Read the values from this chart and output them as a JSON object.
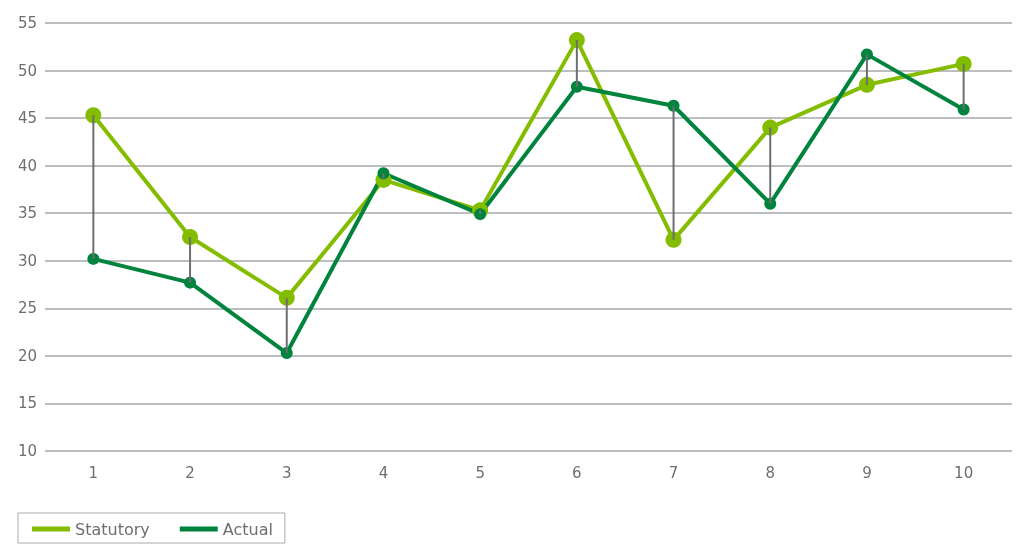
{
  "chart_data": {
    "type": "line",
    "categories": [
      "1",
      "2",
      "3",
      "4",
      "5",
      "6",
      "7",
      "8",
      "9",
      "10"
    ],
    "series": [
      {
        "name": "Statutory",
        "color": "#84bd00",
        "values": [
          45.3,
          32.5,
          26.1,
          38.5,
          35.3,
          53.2,
          32.2,
          44.0,
          48.5,
          50.7
        ]
      },
      {
        "name": "Actual",
        "color": "#00843d",
        "values": [
          30.2,
          27.7,
          20.3,
          39.2,
          34.9,
          48.3,
          46.3,
          36.0,
          51.7,
          45.9
        ],
        "errors": [
          [
            30.2,
            45.3
          ],
          [
            27.7,
            32.5
          ],
          [
            20.3,
            26.1
          ],
          [
            38.5,
            39.2
          ],
          [
            34.9,
            35.3
          ],
          [
            48.3,
            53.2
          ],
          [
            32.2,
            46.3
          ],
          [
            36.0,
            44.0
          ],
          [
            48.5,
            51.7
          ],
          [
            45.9,
            50.7
          ]
        ]
      }
    ],
    "ylim": [
      10,
      55
    ],
    "yticks": [
      10,
      15,
      20,
      25,
      30,
      35,
      40,
      45,
      50,
      55
    ],
    "grid": "y",
    "legend": "bottom left",
    "marker": "circle",
    "line_style": "solid"
  }
}
